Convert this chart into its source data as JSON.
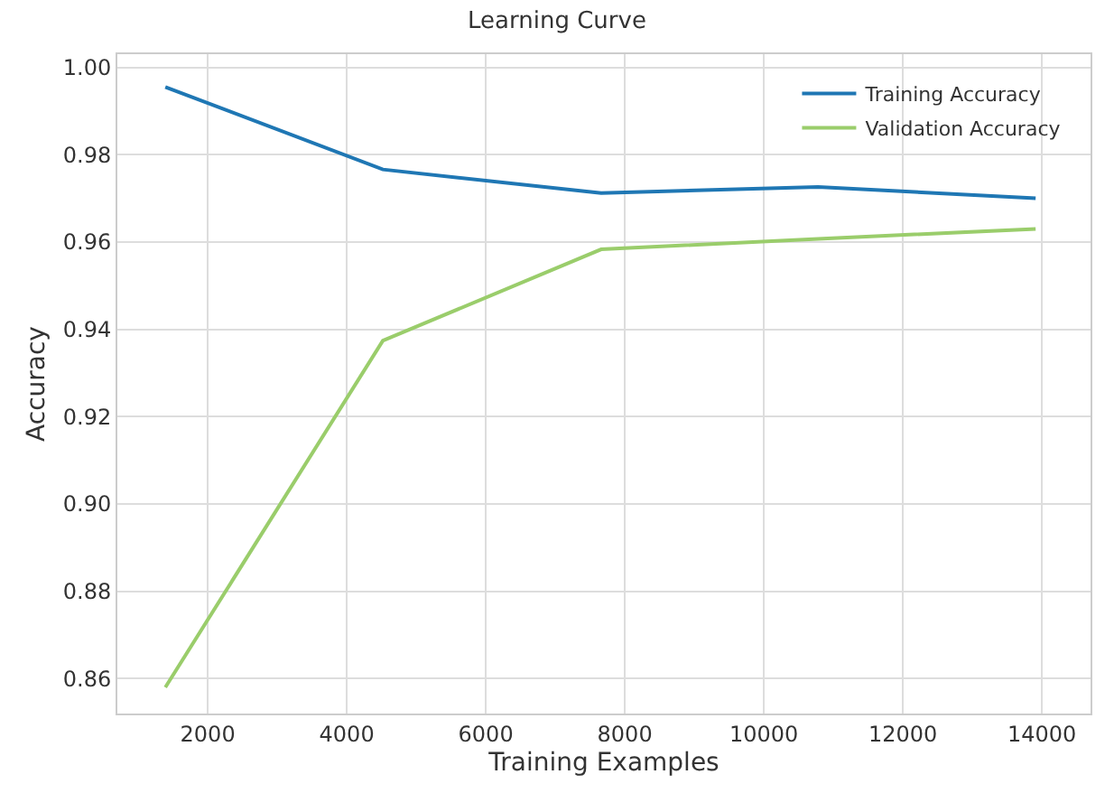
{
  "chart_data": {
    "type": "line",
    "title": "Learning Curve",
    "xlabel": "Training Examples",
    "ylabel": "Accuracy",
    "x": [
      1390,
      4520,
      7660,
      10780,
      13910
    ],
    "series": [
      {
        "name": "Training Accuracy",
        "color": "#1f77b4",
        "values": [
          0.9955,
          0.9766,
          0.9712,
          0.9726,
          0.97
        ]
      },
      {
        "name": "Validation Accuracy",
        "color": "#9acd6b",
        "values": [
          0.858,
          0.9374,
          0.9583,
          0.9607,
          0.963
        ]
      }
    ],
    "xlim": [
      700,
      14700
    ],
    "xticks": [
      2000,
      4000,
      6000,
      8000,
      10000,
      12000,
      14000
    ],
    "ylim": [
      0.852,
      1.003
    ],
    "yticks": [
      {
        "value": 0.86,
        "label": "0.86"
      },
      {
        "value": 0.88,
        "label": "0.88"
      },
      {
        "value": 0.9,
        "label": "0.90"
      },
      {
        "value": 0.92,
        "label": "0.92"
      },
      {
        "value": 0.94,
        "label": "0.94"
      },
      {
        "value": 0.96,
        "label": "0.96"
      },
      {
        "value": 0.98,
        "label": "0.98"
      },
      {
        "value": 1.0,
        "label": "1.00"
      }
    ],
    "grid": true,
    "legend": "top right",
    "marker": "none",
    "line_style": "solid"
  }
}
